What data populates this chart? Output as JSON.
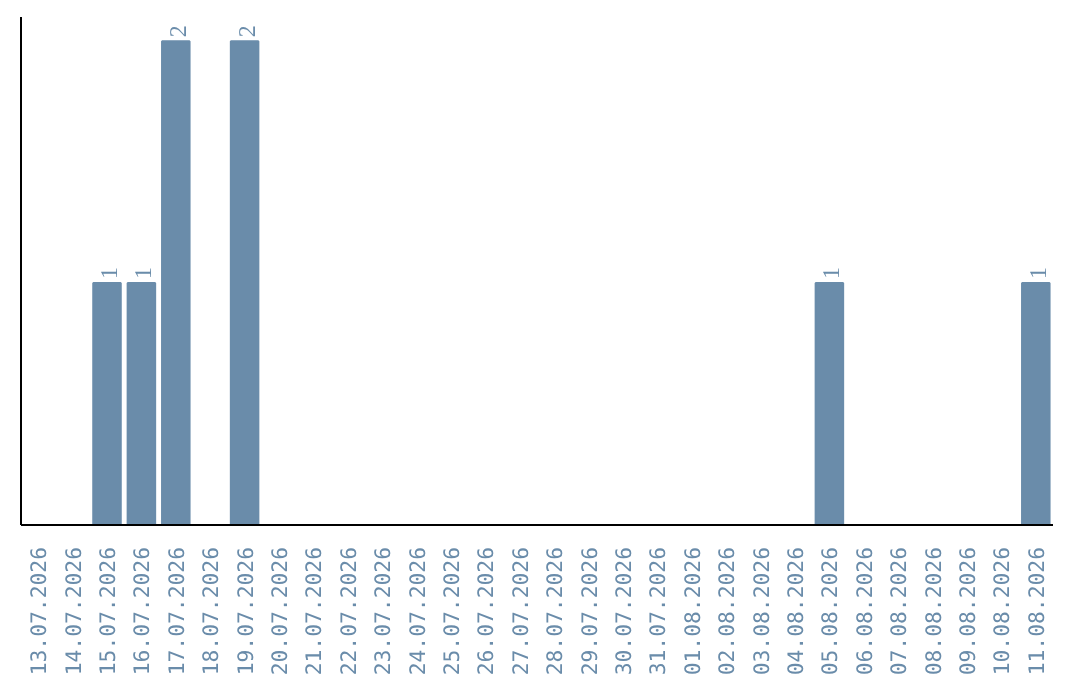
{
  "chart_data": {
    "type": "bar",
    "categories": [
      "13.07.2026",
      "14.07.2026",
      "15.07.2026",
      "16.07.2026",
      "17.07.2026",
      "18.07.2026",
      "19.07.2026",
      "20.07.2026",
      "21.07.2026",
      "22.07.2026",
      "23.07.2026",
      "24.07.2026",
      "25.07.2026",
      "26.07.2026",
      "27.07.2026",
      "28.07.2026",
      "29.07.2026",
      "30.07.2026",
      "31.07.2026",
      "01.08.2026",
      "02.08.2026",
      "03.08.2026",
      "04.08.2026",
      "05.08.2026",
      "06.08.2026",
      "07.08.2026",
      "08.08.2026",
      "09.08.2026",
      "10.08.2026",
      "11.08.2026"
    ],
    "values": [
      0,
      0,
      1,
      1,
      2,
      0,
      2,
      0,
      0,
      0,
      0,
      0,
      0,
      0,
      0,
      0,
      0,
      0,
      0,
      0,
      0,
      0,
      0,
      1,
      0,
      0,
      0,
      0,
      0,
      1
    ],
    "value_labels": [
      null,
      null,
      "1",
      "1",
      "2",
      null,
      "2",
      null,
      null,
      null,
      null,
      null,
      null,
      null,
      null,
      null,
      null,
      null,
      null,
      null,
      null,
      null,
      null,
      "1",
      null,
      null,
      null,
      null,
      null,
      "1"
    ],
    "color": "#6a8caa",
    "tick_labels": "x"
  }
}
